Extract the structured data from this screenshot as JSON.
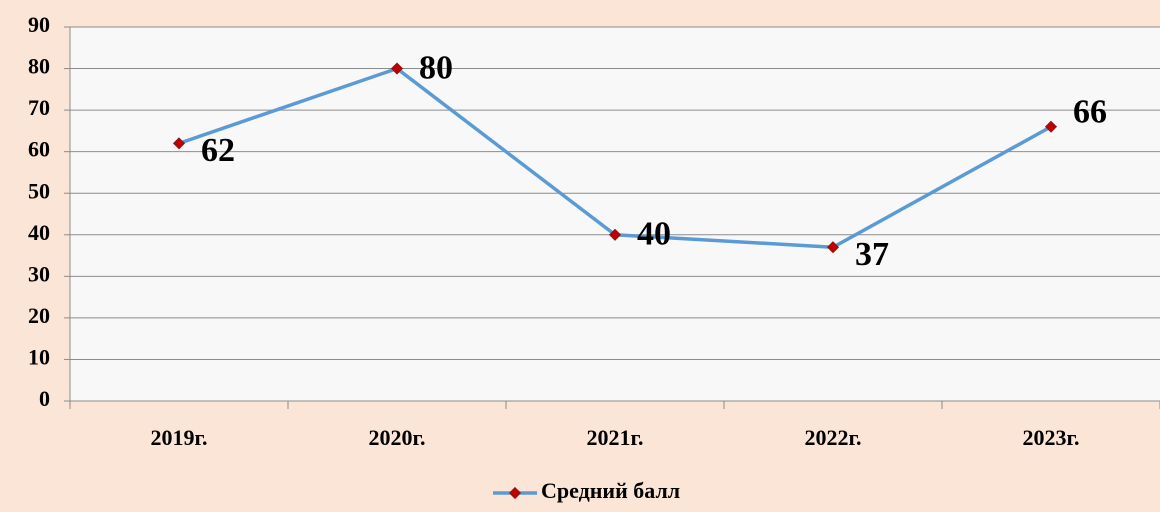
{
  "chart_data": {
    "type": "line",
    "categories": [
      "2019г.",
      "2020г.",
      "2021г.",
      "2022г.",
      "2023г."
    ],
    "series": [
      {
        "name": "Средний балл",
        "color": "#5b9bd5",
        "marker_color": "#c00000",
        "values": [
          62,
          80,
          40,
          37,
          66
        ]
      }
    ],
    "ylim": [
      0,
      90
    ],
    "yticks": [
      0,
      10,
      20,
      30,
      40,
      50,
      60,
      70,
      80,
      90
    ],
    "grid": true,
    "legend": "bottom"
  }
}
